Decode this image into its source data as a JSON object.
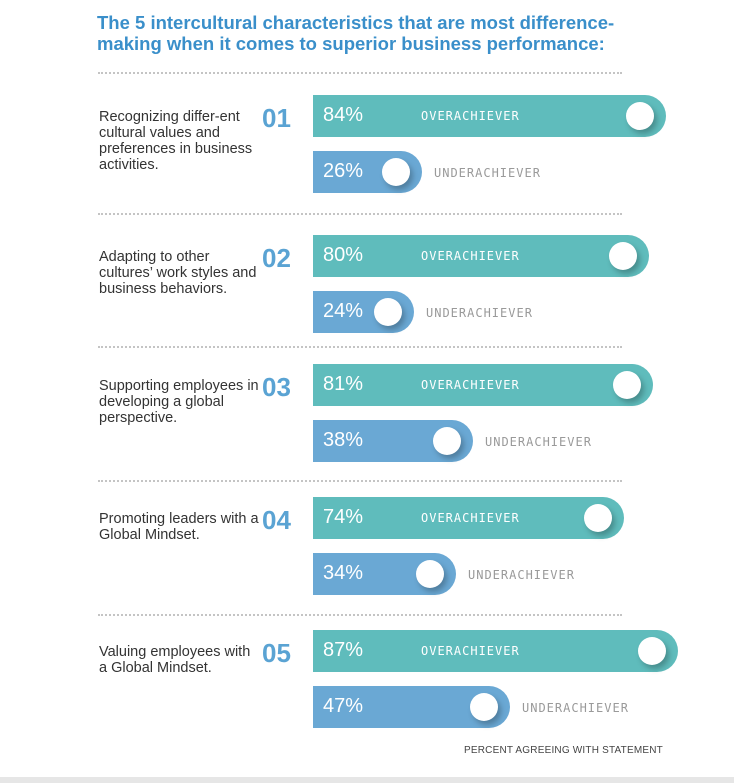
{
  "title": "The 5 intercultural characteristics that are most difference-making when it comes to superior business performance:",
  "footer": "PERCENT AGREEING WITH STATEMENT",
  "colors": {
    "overachiever": "#5fbcbc",
    "underachiever": "#6aa8d4",
    "title": "#3a8fca"
  },
  "chart_data": {
    "type": "bar",
    "orientation": "horizontal",
    "title": "The 5 intercultural characteristics that are most difference-making when it comes to superior business performance:",
    "xlabel": "PERCENT AGREEING WITH STATEMENT",
    "xlim": [
      0,
      100
    ],
    "categories": [
      {
        "number": "01",
        "label": "Recognizing differ-ent cultural values and preferences in business activities."
      },
      {
        "number": "02",
        "label": "Adapting to other cultures’ work styles and business behaviors."
      },
      {
        "number": "03",
        "label": "Supporting employees in developing a global perspective."
      },
      {
        "number": "04",
        "label": "Promoting leaders with a Global Mindset."
      },
      {
        "number": "05",
        "label": "Valuing employees with a Global Mindset."
      }
    ],
    "series": [
      {
        "name": "OVERACHIEVER",
        "values": [
          84,
          80,
          81,
          74,
          87
        ],
        "labels": [
          "84%",
          "80%",
          "81%",
          "74%",
          "87%"
        ]
      },
      {
        "name": "UNDERACHIEVER",
        "values": [
          26,
          24,
          38,
          34,
          47
        ],
        "labels": [
          "26%",
          "24%",
          "38%",
          "34%",
          "47%"
        ]
      }
    ]
  }
}
